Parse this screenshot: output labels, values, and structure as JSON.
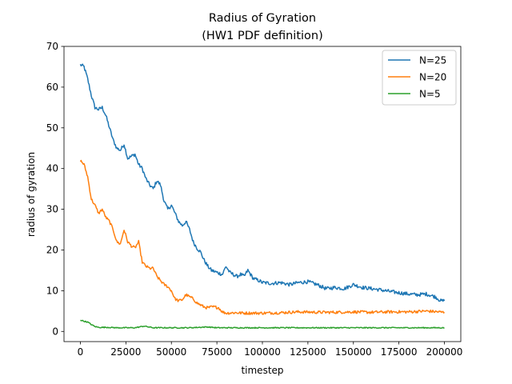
{
  "chart_data": {
    "type": "line",
    "title_line1": "Radius of Gyration",
    "title_line2": "(HW1 PDF definition)",
    "xlabel": "timestep",
    "ylabel": "radius of gyration",
    "xlim": [
      -9000,
      209000
    ],
    "ylim": [
      -2.5,
      70
    ],
    "x_ticks": [
      0,
      25000,
      50000,
      75000,
      100000,
      125000,
      150000,
      175000,
      200000
    ],
    "y_ticks": [
      0,
      10,
      20,
      30,
      40,
      50,
      60,
      70
    ],
    "legend_position": "top-right",
    "series": [
      {
        "name": "N=25",
        "color": "#1f77b4",
        "x": [
          0,
          2000,
          4000,
          6000,
          8000,
          10000,
          12000,
          14000,
          16000,
          18000,
          20000,
          22000,
          24000,
          26000,
          28000,
          30000,
          32000,
          34000,
          36000,
          38000,
          40000,
          42000,
          44000,
          46000,
          48000,
          50000,
          52000,
          54000,
          56000,
          58000,
          60000,
          62000,
          64000,
          66000,
          68000,
          70000,
          72000,
          75000,
          78000,
          80000,
          82000,
          84000,
          86000,
          88000,
          90000,
          92000,
          95000,
          98000,
          100000,
          105000,
          110000,
          115000,
          120000,
          125000,
          130000,
          135000,
          140000,
          145000,
          150000,
          155000,
          160000,
          165000,
          170000,
          175000,
          180000,
          185000,
          190000,
          195000,
          198000,
          200000
        ],
        "values": [
          65.5,
          65,
          62,
          58,
          55,
          54.5,
          55,
          53,
          50,
          47,
          45,
          44.5,
          46,
          42.5,
          43,
          43.5,
          41,
          40,
          37.5,
          36,
          35,
          37,
          36,
          32,
          30,
          31,
          29,
          27,
          26,
          27,
          25,
          22,
          20.5,
          19.5,
          17.5,
          16,
          15,
          14.5,
          14,
          16,
          14.5,
          14,
          13.5,
          14,
          13.5,
          15,
          13,
          12.5,
          12,
          11.8,
          12,
          11.5,
          12,
          12.2,
          11.5,
          10.5,
          10.8,
          10.5,
          11.5,
          10.8,
          10.5,
          10.2,
          9.8,
          9.5,
          9.2,
          9,
          9.2,
          8.5,
          7.5,
          7.5
        ]
      },
      {
        "name": "N=20",
        "color": "#ff7f0e",
        "x": [
          0,
          2000,
          4000,
          6000,
          8000,
          10000,
          12000,
          14000,
          16000,
          18000,
          20000,
          22000,
          24000,
          26000,
          28000,
          30000,
          32000,
          34000,
          36000,
          38000,
          40000,
          42000,
          44000,
          46000,
          48000,
          50000,
          52000,
          54000,
          56000,
          58000,
          60000,
          62000,
          64000,
          66000,
          68000,
          70000,
          72000,
          74000,
          76000,
          78000,
          80000,
          85000,
          90000,
          100000,
          110000,
          120000,
          130000,
          140000,
          150000,
          160000,
          170000,
          180000,
          190000,
          200000
        ],
        "values": [
          42,
          41,
          38,
          32.5,
          31,
          29,
          30,
          28,
          27,
          25,
          22,
          21.5,
          25,
          22,
          21,
          20.5,
          22,
          17,
          16,
          15.5,
          15.5,
          13.5,
          12.5,
          11.5,
          11,
          10,
          8,
          7.5,
          7.8,
          9,
          8.5,
          8,
          7,
          6.5,
          6,
          5.8,
          6,
          6,
          5.8,
          4.8,
          4.5,
          4.6,
          4.5,
          4.5,
          4.6,
          4.8,
          4.7,
          4.7,
          4.8,
          4.7,
          4.8,
          4.8,
          5,
          4.7
        ]
      },
      {
        "name": "N=5",
        "color": "#2ca02c",
        "x": [
          0,
          2000,
          4000,
          6000,
          8000,
          10000,
          15000,
          20000,
          25000,
          30000,
          35000,
          40000,
          50000,
          60000,
          70000,
          75000,
          80000,
          100000,
          125000,
          150000,
          175000,
          200000
        ],
        "values": [
          2.8,
          2.5,
          2.3,
          1.7,
          1.2,
          1.0,
          1.0,
          0.9,
          0.9,
          0.9,
          1.3,
          0.9,
          0.9,
          0.9,
          1.1,
          0.9,
          0.9,
          0.9,
          0.9,
          0.9,
          0.9,
          0.9
        ]
      }
    ]
  }
}
